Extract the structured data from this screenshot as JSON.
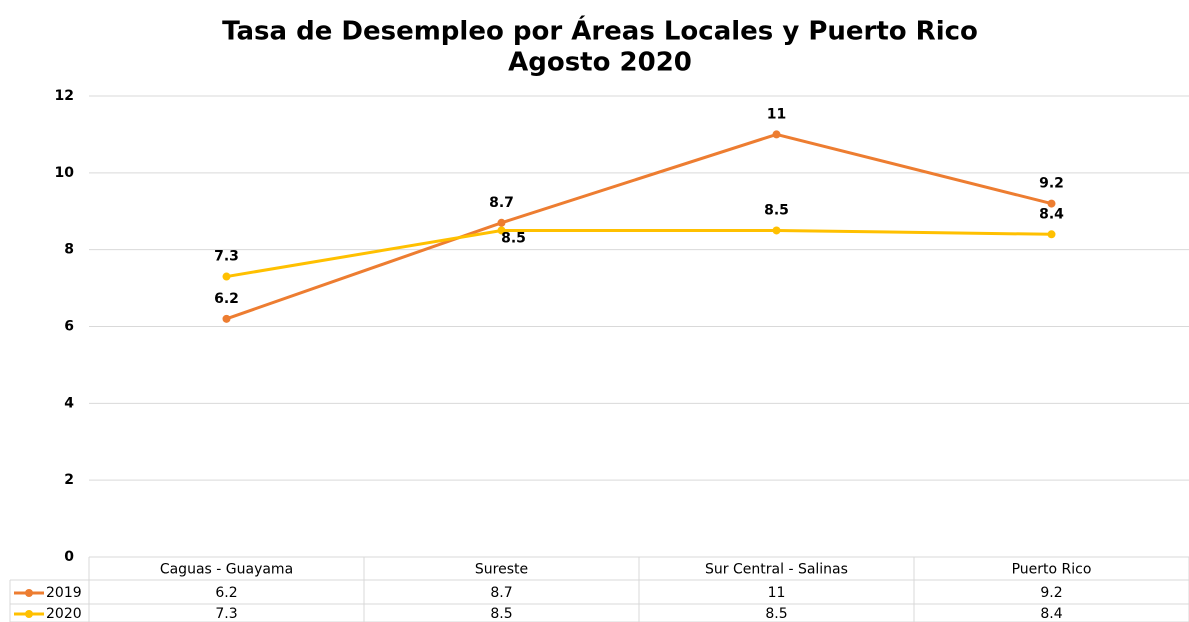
{
  "chart_data": {
    "type": "line",
    "title": "Tasa de Desempleo por Áreas Locales y Puerto Rico",
    "subtitle": "Agosto 2020",
    "categories": [
      "Caguas - Guayama",
      "Sureste",
      "Sur Central - Salinas",
      "Puerto Rico"
    ],
    "series": [
      {
        "name": "2019",
        "color": "#ED7D31",
        "values": [
          6.2,
          8.7,
          11,
          9.2
        ]
      },
      {
        "name": "2020",
        "color": "#FFC000",
        "values": [
          7.3,
          8.5,
          8.5,
          8.4
        ]
      }
    ],
    "ylim": [
      0,
      12
    ],
    "yticks": [
      0,
      2,
      4,
      6,
      8,
      10,
      12
    ],
    "grid": true,
    "data_table": true
  }
}
